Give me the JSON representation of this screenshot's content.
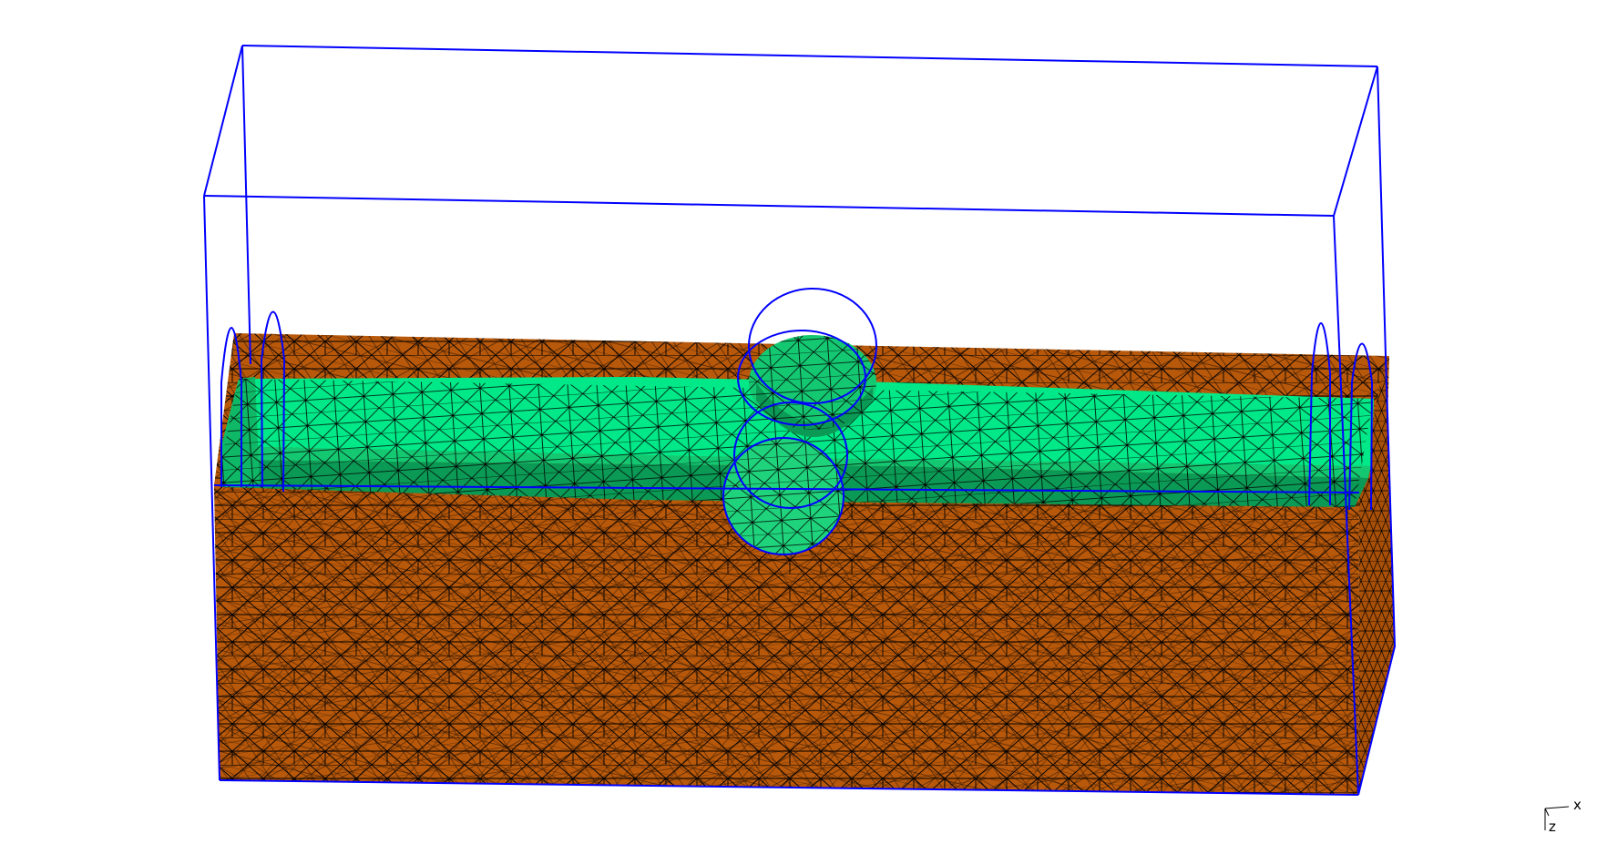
{
  "viewer": {
    "background": "#ffffff",
    "colors": {
      "soil": "#b8580a",
      "soil_side": "#a84f08",
      "channel_light": "#00e887",
      "channel_mid": "#14c872",
      "channel_dark": "#0b9a55",
      "mesh_lines": "#000000",
      "boundary_wire": "#0000ff"
    },
    "layers": [
      "soil-block",
      "channel-surface",
      "cylinder-probe",
      "bounding-box-wireframe"
    ]
  },
  "axis_indicator": {
    "x_label": "x",
    "z_label": "z"
  }
}
